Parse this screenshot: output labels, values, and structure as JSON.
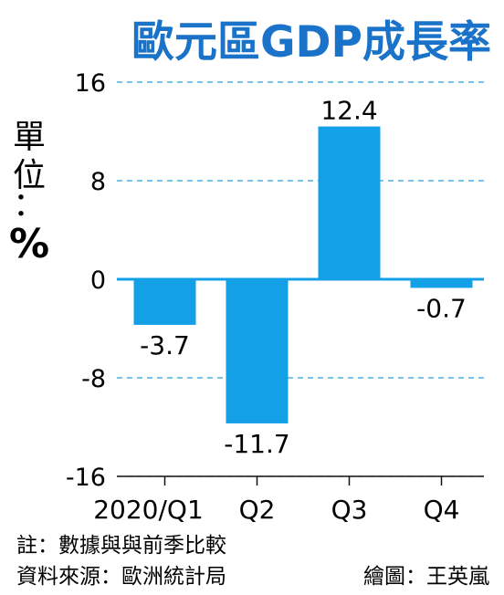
{
  "chart_data": {
    "type": "bar",
    "title": "歐元區GDP成長率",
    "unit_label": {
      "char1": "單",
      "char2": "位",
      "colon": "：",
      "symbol": "%"
    },
    "categories": [
      "2020/Q1",
      "Q2",
      "Q3",
      "Q4"
    ],
    "values": [
      -3.7,
      -11.7,
      12.4,
      -0.7
    ],
    "data_labels": [
      "-3.7",
      "-11.7",
      "12.4",
      "-0.7"
    ],
    "yticks": [
      16,
      8,
      0,
      -8,
      -16
    ],
    "ylim": [
      -16,
      16
    ],
    "grid": true,
    "bar_color": "#14a0e6",
    "title_color": "#1a73c8"
  },
  "notes": {
    "note": "註：數據與與前季比較",
    "source": "資料來源：歐洲統計局",
    "credit": "繪圖：王英嵐"
  }
}
